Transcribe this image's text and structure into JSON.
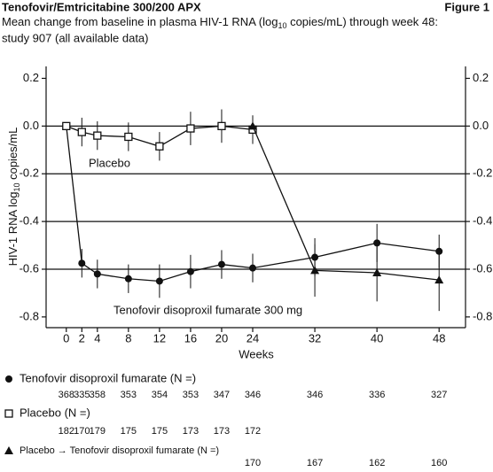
{
  "chart_data": {
    "type": "line",
    "title": "Tenofovir/Emtricitabine 300/200 APX",
    "figure_label": "Figure 1",
    "subtitle": [
      "Mean change from baseline in plasma HIV-1 RNA (log",
      "10",
      " copies/mL) through week 48:"
    ],
    "subtitle2": "study 907 (all available data)",
    "ylabel": [
      "HIV-1 RNA log",
      "10",
      " copies/mL"
    ],
    "xlabel": "Weeks",
    "x": [
      0,
      2,
      4,
      8,
      12,
      16,
      20,
      24,
      32,
      40,
      48
    ],
    "xlim": [
      -2.6,
      51.4
    ],
    "ylim": [
      -0.845,
      0.25
    ],
    "yticks": [
      0.2,
      {
        "value": 0,
        "label": "0.0"
      },
      -0.2,
      -0.4,
      -0.6,
      -0.8
    ],
    "gridlines": [
      0,
      -0.2,
      -0.4,
      -0.6
    ],
    "annotations": [
      "Placebo",
      "Tenofovir disoproxil fumarate 300 mg"
    ],
    "series": [
      {
        "name": "Tenofovir disoproxil fumarate (N =)",
        "marker": "circle",
        "color": "#111",
        "values": [
          0,
          -0.575,
          -0.62,
          -0.64,
          -0.65,
          -0.61,
          -0.58,
          -0.595,
          -0.55,
          -0.49,
          -0.525
        ],
        "errors": [
          null,
          0.06,
          0.06,
          0.06,
          0.07,
          0.07,
          0.06,
          0.06,
          0.08,
          0.08,
          0.07
        ],
        "n": [
          368,
          335,
          358,
          353,
          354,
          353,
          347,
          346,
          346,
          336,
          327
        ]
      },
      {
        "name": "Placebo (N =)",
        "marker": "square",
        "color": "#111",
        "values": [
          0,
          -0.025,
          -0.04,
          -0.045,
          -0.085,
          -0.01,
          0,
          -0.015,
          null,
          null,
          null
        ],
        "errors": [
          null,
          0.06,
          0.06,
          0.06,
          0.06,
          0.07,
          0.07,
          0.06,
          null,
          null,
          null
        ],
        "n": [
          182,
          170,
          179,
          175,
          175,
          173,
          173,
          172,
          null,
          null,
          null
        ]
      },
      {
        "name": "Placebo → Tenofovir disoproxil fumarate (N =)",
        "marker": "triangle",
        "color": "#111",
        "values": [
          null,
          null,
          null,
          null,
          null,
          null,
          null,
          0,
          -0.605,
          -0.615,
          -0.645
        ],
        "errors": [
          null,
          null,
          null,
          null,
          null,
          null,
          null,
          null,
          0.11,
          0.12,
          0.13
        ],
        "n": [
          null,
          null,
          null,
          null,
          null,
          null,
          null,
          170,
          167,
          162,
          160
        ]
      }
    ]
  }
}
